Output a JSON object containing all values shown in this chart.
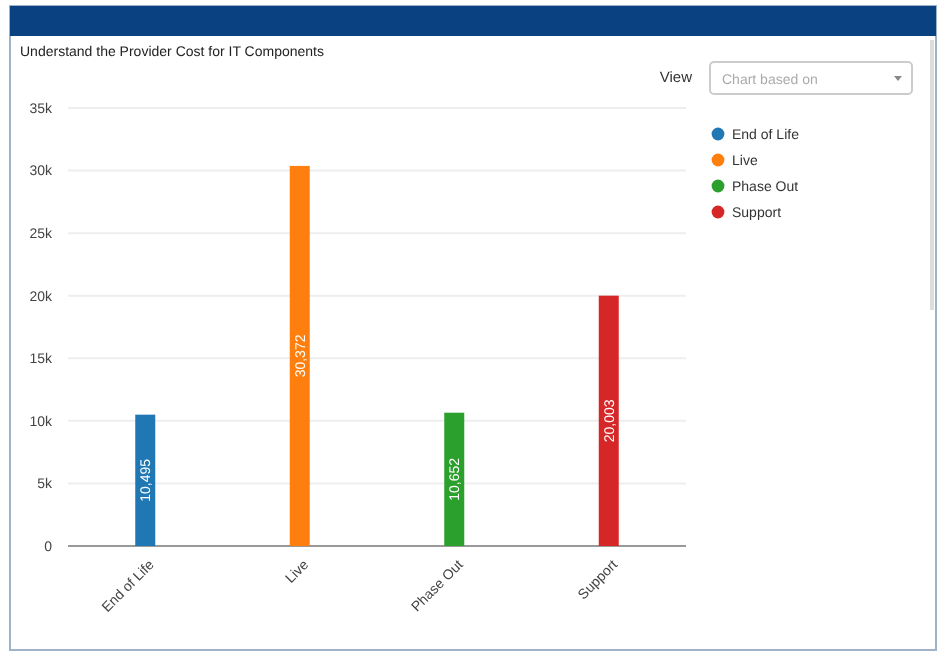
{
  "chart_data": {
    "type": "bar",
    "title": "Understand the Provider Cost for IT Components",
    "categories": [
      "End of Life",
      "Live",
      "Phase Out",
      "Support"
    ],
    "series": [
      {
        "name": "End of Life",
        "color": "#1f77b4",
        "values": [
          10495,
          null,
          null,
          null
        ],
        "value_labels": [
          "10,495",
          null,
          null,
          null
        ]
      },
      {
        "name": "Live",
        "color": "#ff7f0e",
        "values": [
          null,
          30372,
          null,
          null
        ],
        "value_labels": [
          null,
          "30,372",
          null,
          null
        ]
      },
      {
        "name": "Phase Out",
        "color": "#2ca02c",
        "values": [
          null,
          null,
          10652,
          null
        ],
        "value_labels": [
          null,
          null,
          "10,652",
          null
        ]
      },
      {
        "name": "Support",
        "color": "#d62728",
        "values": [
          null,
          null,
          null,
          20003
        ],
        "value_labels": [
          null,
          null,
          null,
          "20,003"
        ]
      }
    ],
    "ylim": [
      0,
      35000
    ],
    "yticks": [
      0,
      {
        "value": 5000,
        "label": "5k"
      },
      {
        "value": 10000,
        "label": "10k"
      },
      {
        "value": 15000,
        "label": "15k"
      },
      {
        "value": 20000,
        "label": "20k"
      },
      {
        "value": 25000,
        "label": "25k"
      },
      {
        "value": 30000,
        "label": "30k"
      },
      {
        "value": 35000,
        "label": "35k"
      }
    ],
    "grid": "y",
    "legend": "right",
    "annotations": [
      "View",
      "Chart based on"
    ]
  }
}
